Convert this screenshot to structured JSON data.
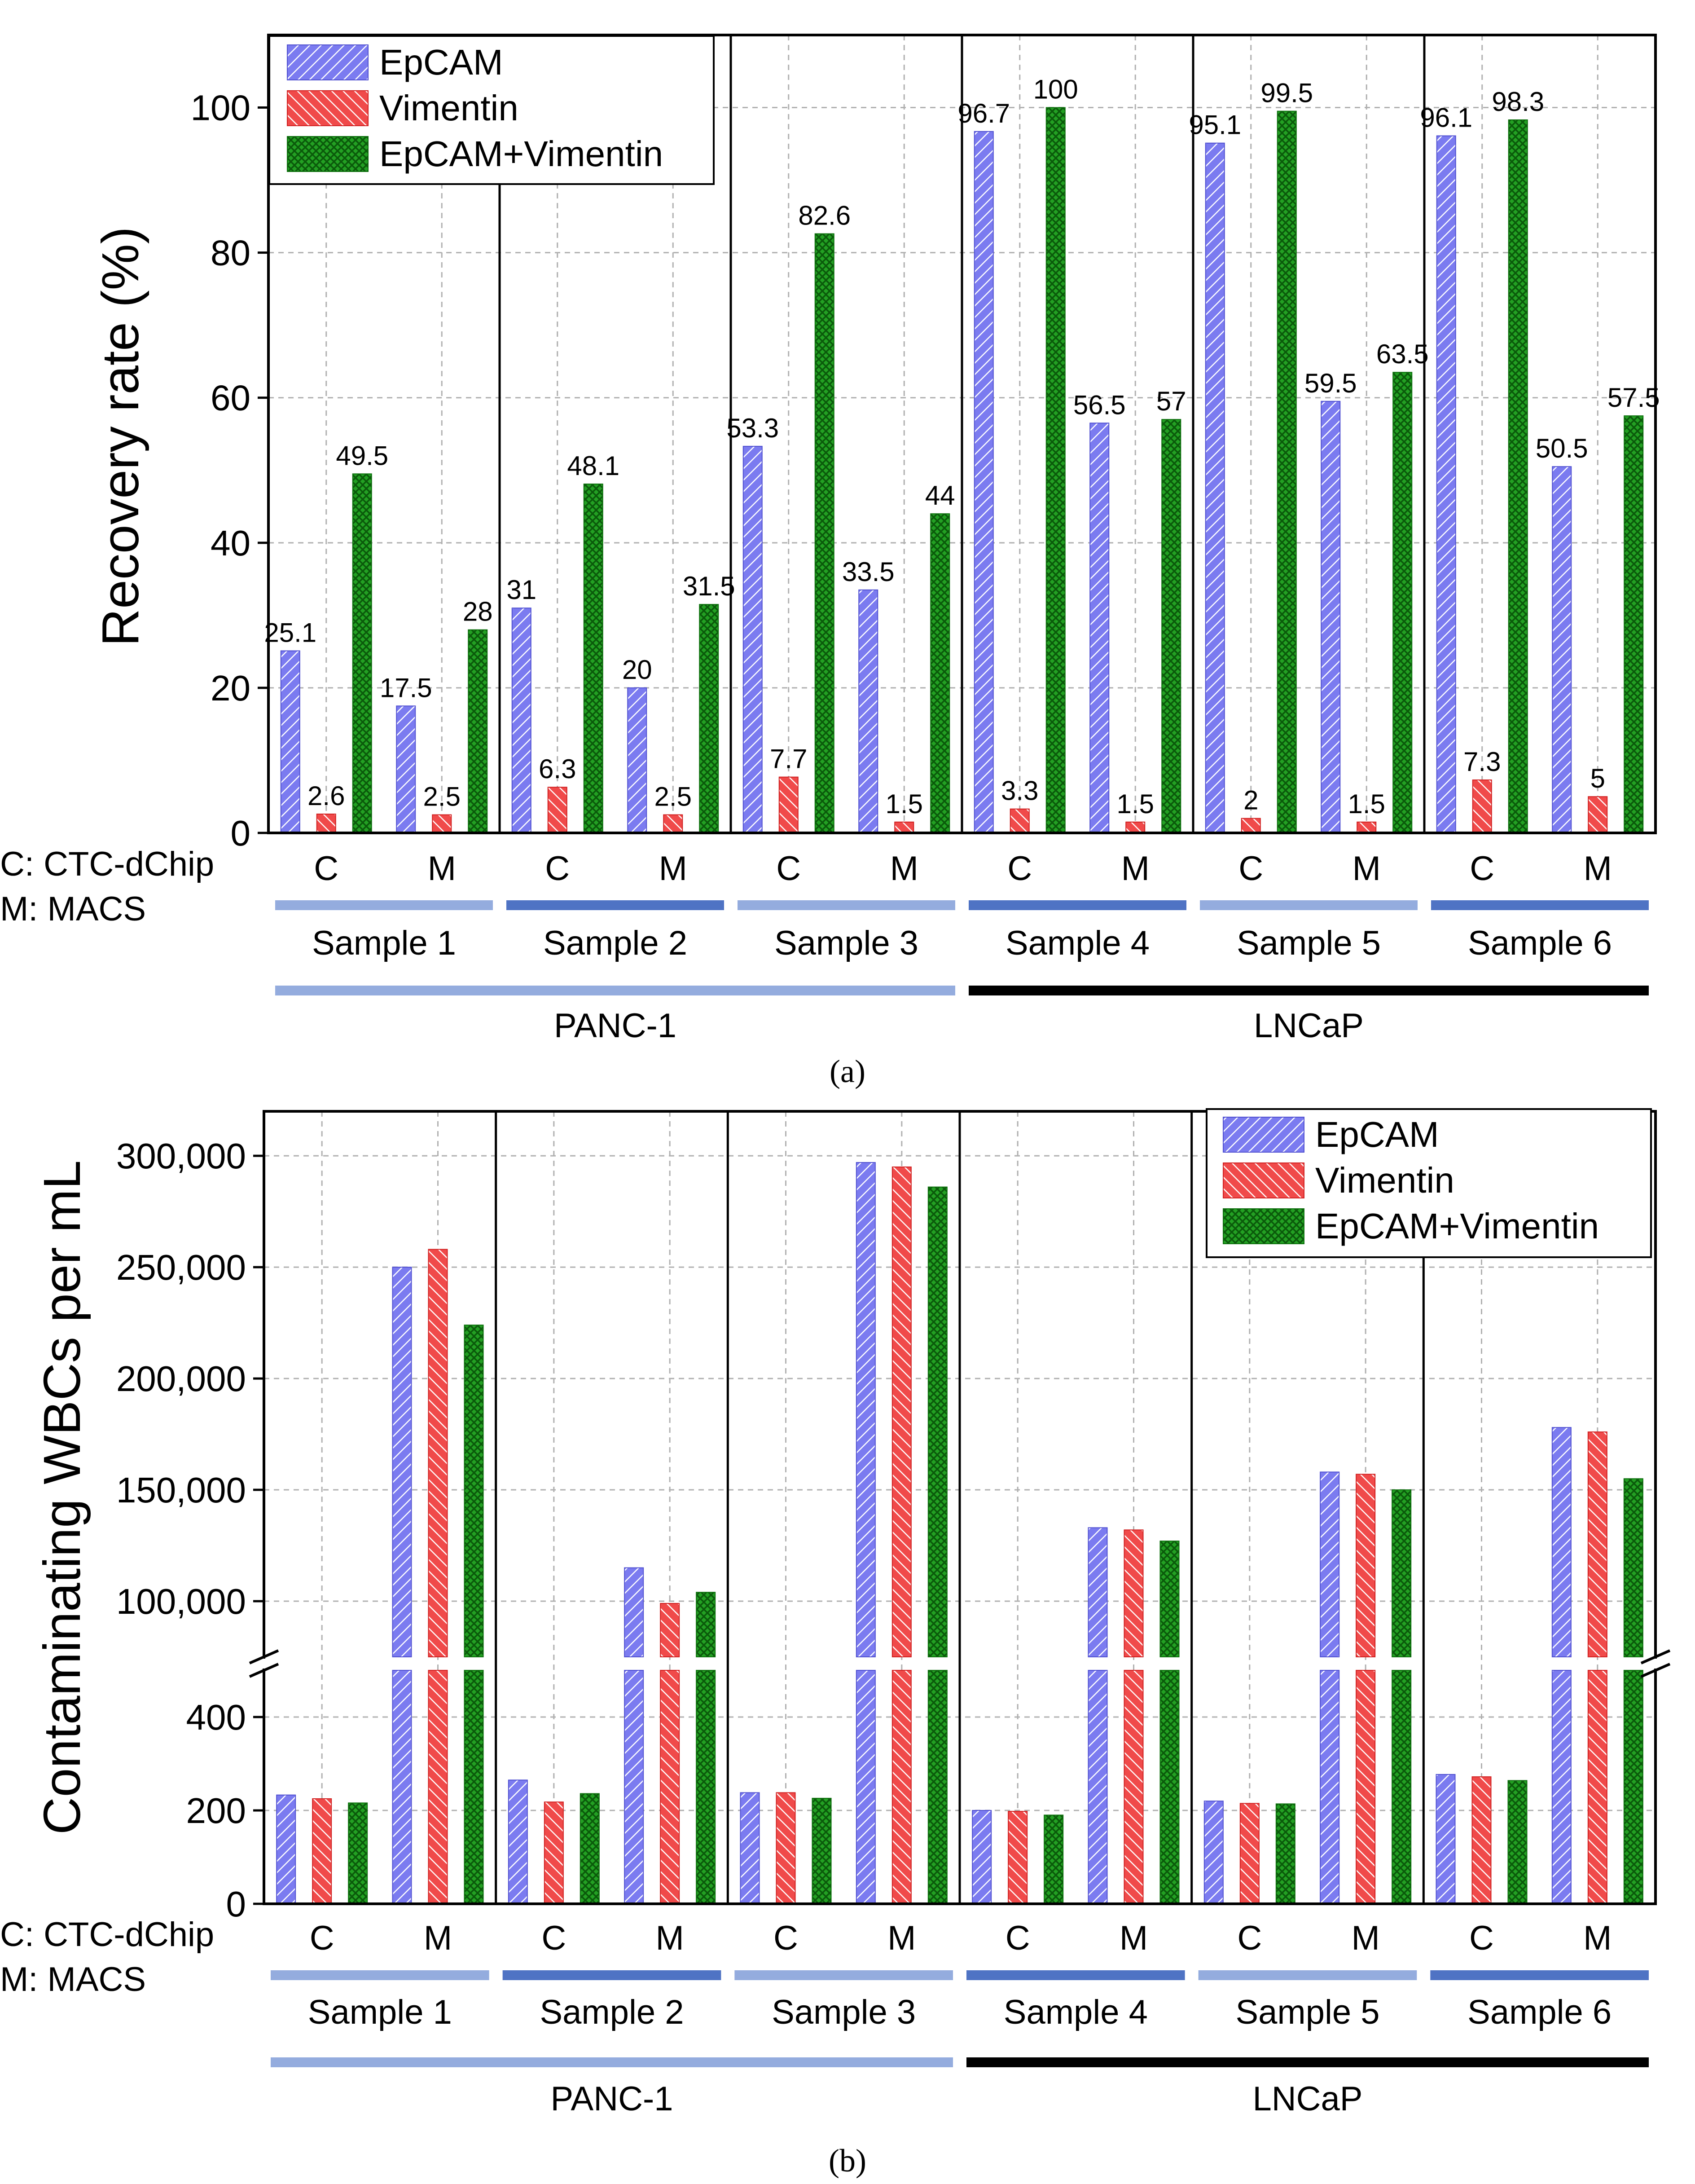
{
  "chart_data": [
    {
      "type": "bar",
      "panel_label": "(a)",
      "ylabel": "Recovery rate (%)",
      "ylim": [
        0,
        110
      ],
      "yticks": [
        0,
        20,
        40,
        60,
        80,
        100
      ],
      "grid": true,
      "legend_position": "top-left",
      "categories": [
        "C",
        "M",
        "C",
        "M",
        "C",
        "M",
        "C",
        "M",
        "C",
        "M",
        "C",
        "M"
      ],
      "method_legend": [
        "C: CTC-dChip",
        "M: MACS"
      ],
      "samples": [
        "Sample 1",
        "Sample 2",
        "Sample 3",
        "Sample 4",
        "Sample 5",
        "Sample 6"
      ],
      "cell_lines": [
        "PANC-1",
        "LNCaP"
      ],
      "series": [
        {
          "name": "EpCAM",
          "color": "#7b7bf0",
          "values": [
            25.1,
            17.5,
            31,
            20,
            53.3,
            33.5,
            96.7,
            56.5,
            95.1,
            59.5,
            96.1,
            50.5
          ]
        },
        {
          "name": "Vimentin",
          "color": "#f04a4a",
          "values": [
            2.6,
            2.5,
            6.3,
            2.5,
            7.7,
            1.5,
            3.3,
            1.5,
            2,
            1.5,
            7.3,
            5
          ]
        },
        {
          "name": "EpCAM+Vimentin",
          "color": "#23a023",
          "values": [
            49.5,
            28,
            48.1,
            31.5,
            82.6,
            44,
            100,
            57,
            99.5,
            63.5,
            98.3,
            57.5
          ]
        }
      ],
      "value_labels": [
        [
          "25.1",
          "17.5",
          "31",
          "20",
          "53.3",
          "33.5",
          "96.7",
          "56.5",
          "95.1",
          "59.5",
          "96.1",
          "50.5"
        ],
        [
          "2.6",
          "2.5",
          "6.3",
          "2.5",
          "7.7",
          "1.5",
          "3.3",
          "1.5",
          "2",
          "1.5",
          "7.3",
          "5"
        ],
        [
          "49.5",
          "28",
          "48.1",
          "31.5",
          "82.6",
          "44",
          "100",
          "57",
          "99.5",
          "63.5",
          "98.3",
          "57.5"
        ]
      ]
    },
    {
      "type": "bar",
      "panel_label": "(b)",
      "ylabel": "Contaminating WBCs per mL",
      "broken_axis": true,
      "ylim_lower": [
        0,
        500
      ],
      "ylim_upper": [
        75000,
        320000
      ],
      "yticks_lower": [
        0,
        200,
        400
      ],
      "yticks_upper": [
        100000,
        150000,
        200000,
        250000,
        300000
      ],
      "ytick_labels_lower": [
        "0",
        "200",
        "400"
      ],
      "ytick_labels_upper": [
        "100,000",
        "150,000",
        "200,000",
        "250,000",
        "300,000"
      ],
      "grid": true,
      "legend_position": "top-right",
      "categories": [
        "C",
        "M",
        "C",
        "M",
        "C",
        "M",
        "C",
        "M",
        "C",
        "M",
        "C",
        "M"
      ],
      "method_legend": [
        "C: CTC-dChip",
        "M: MACS"
      ],
      "samples": [
        "Sample 1",
        "Sample 2",
        "Sample 3",
        "Sample 4",
        "Sample 5",
        "Sample 6"
      ],
      "cell_lines": [
        "PANC-1",
        "LNCaP"
      ],
      "series": [
        {
          "name": "EpCAM",
          "color": "#7b7bf0",
          "values": [
            233,
            250000,
            265,
            115000,
            238,
            297000,
            200,
            133000,
            220,
            158000,
            277,
            178000
          ]
        },
        {
          "name": "Vimentin",
          "color": "#f04a4a",
          "values": [
            225,
            258000,
            218,
            99000,
            238,
            295000,
            198,
            132000,
            215,
            157000,
            272,
            176000
          ]
        },
        {
          "name": "EpCAM+Vimentin",
          "color": "#23a023",
          "values": [
            216,
            224000,
            236,
            104000,
            226,
            286000,
            190,
            127000,
            214,
            150000,
            264,
            155000
          ]
        }
      ]
    }
  ]
}
